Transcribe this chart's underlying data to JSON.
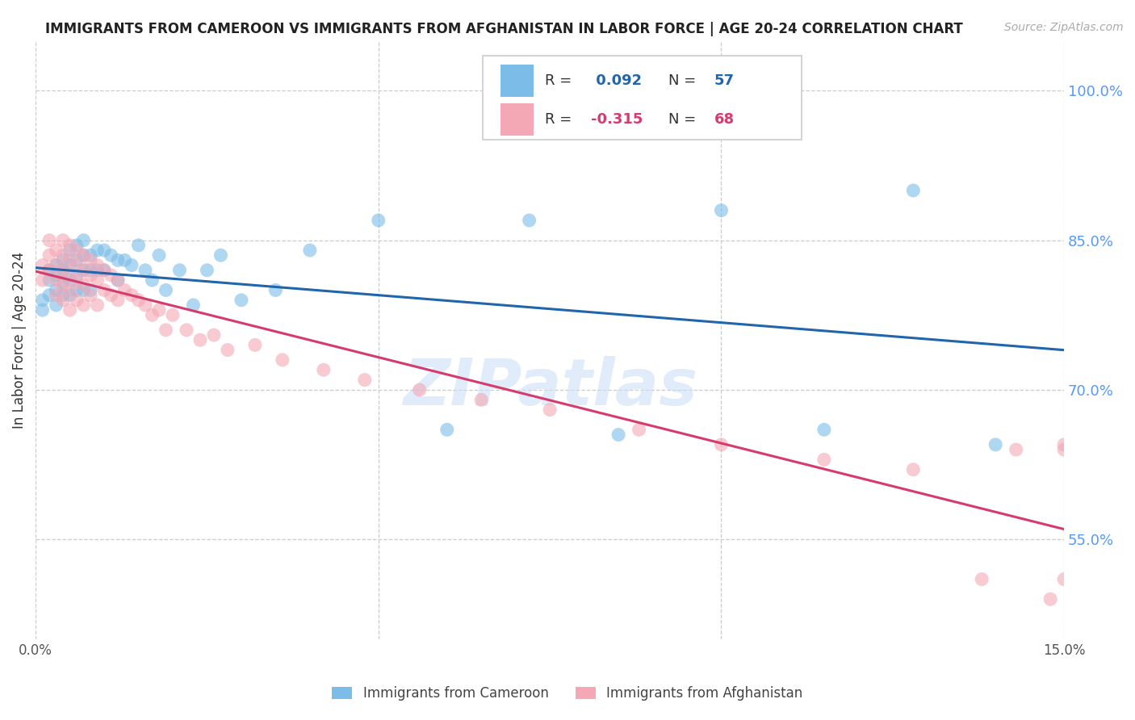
{
  "title": "IMMIGRANTS FROM CAMEROON VS IMMIGRANTS FROM AFGHANISTAN IN LABOR FORCE | AGE 20-24 CORRELATION CHART",
  "source": "Source: ZipAtlas.com",
  "ylabel": "In Labor Force | Age 20-24",
  "xlim": [
    0.0,
    0.15
  ],
  "ylim": [
    0.45,
    1.05
  ],
  "ytick_right_labels": [
    "100.0%",
    "85.0%",
    "70.0%",
    "55.0%"
  ],
  "ytick_right_vals": [
    1.0,
    0.85,
    0.7,
    0.55
  ],
  "cameroon_color": "#7bbde8",
  "afghanistan_color": "#f4a7b5",
  "cameroon_line_color": "#2166ac",
  "afghanistan_line_color": "#d63b6e",
  "R_cameroon": 0.092,
  "N_cameroon": 57,
  "R_afghanistan": -0.315,
  "N_afghanistan": 68,
  "legend_label_cameroon": "Immigrants from Cameroon",
  "legend_label_afghanistan": "Immigrants from Afghanistan",
  "watermark": "ZIPatlas",
  "cameroon_x": [
    0.001,
    0.001,
    0.002,
    0.002,
    0.002,
    0.003,
    0.003,
    0.003,
    0.003,
    0.004,
    0.004,
    0.004,
    0.004,
    0.005,
    0.005,
    0.005,
    0.005,
    0.006,
    0.006,
    0.006,
    0.006,
    0.007,
    0.007,
    0.007,
    0.007,
    0.008,
    0.008,
    0.008,
    0.009,
    0.009,
    0.01,
    0.01,
    0.011,
    0.012,
    0.012,
    0.013,
    0.014,
    0.015,
    0.016,
    0.017,
    0.018,
    0.019,
    0.021,
    0.023,
    0.025,
    0.027,
    0.03,
    0.035,
    0.04,
    0.05,
    0.06,
    0.072,
    0.085,
    0.1,
    0.115,
    0.128,
    0.14
  ],
  "cameroon_y": [
    0.79,
    0.78,
    0.82,
    0.81,
    0.795,
    0.825,
    0.815,
    0.8,
    0.785,
    0.83,
    0.82,
    0.808,
    0.795,
    0.84,
    0.825,
    0.81,
    0.795,
    0.845,
    0.83,
    0.815,
    0.8,
    0.85,
    0.835,
    0.82,
    0.8,
    0.835,
    0.82,
    0.8,
    0.84,
    0.82,
    0.84,
    0.82,
    0.835,
    0.83,
    0.81,
    0.83,
    0.825,
    0.845,
    0.82,
    0.81,
    0.835,
    0.8,
    0.82,
    0.785,
    0.82,
    0.835,
    0.79,
    0.8,
    0.84,
    0.87,
    0.66,
    0.87,
    0.655,
    0.88,
    0.66,
    0.9,
    0.645
  ],
  "afghanistan_x": [
    0.001,
    0.001,
    0.002,
    0.002,
    0.002,
    0.003,
    0.003,
    0.003,
    0.003,
    0.004,
    0.004,
    0.004,
    0.004,
    0.004,
    0.005,
    0.005,
    0.005,
    0.005,
    0.005,
    0.006,
    0.006,
    0.006,
    0.006,
    0.007,
    0.007,
    0.007,
    0.007,
    0.008,
    0.008,
    0.008,
    0.009,
    0.009,
    0.009,
    0.01,
    0.01,
    0.011,
    0.011,
    0.012,
    0.012,
    0.013,
    0.014,
    0.015,
    0.016,
    0.017,
    0.018,
    0.019,
    0.02,
    0.022,
    0.024,
    0.026,
    0.028,
    0.032,
    0.036,
    0.042,
    0.048,
    0.056,
    0.065,
    0.075,
    0.088,
    0.1,
    0.115,
    0.128,
    0.138,
    0.143,
    0.148,
    0.15,
    0.15,
    0.15
  ],
  "afghanistan_y": [
    0.825,
    0.81,
    0.85,
    0.835,
    0.82,
    0.84,
    0.825,
    0.81,
    0.795,
    0.85,
    0.835,
    0.82,
    0.805,
    0.79,
    0.845,
    0.83,
    0.815,
    0.8,
    0.78,
    0.84,
    0.825,
    0.81,
    0.79,
    0.835,
    0.82,
    0.805,
    0.785,
    0.83,
    0.815,
    0.795,
    0.825,
    0.81,
    0.785,
    0.82,
    0.8,
    0.815,
    0.795,
    0.81,
    0.79,
    0.8,
    0.795,
    0.79,
    0.785,
    0.775,
    0.78,
    0.76,
    0.775,
    0.76,
    0.75,
    0.755,
    0.74,
    0.745,
    0.73,
    0.72,
    0.71,
    0.7,
    0.69,
    0.68,
    0.66,
    0.645,
    0.63,
    0.62,
    0.51,
    0.64,
    0.49,
    0.51,
    0.645,
    0.64
  ]
}
